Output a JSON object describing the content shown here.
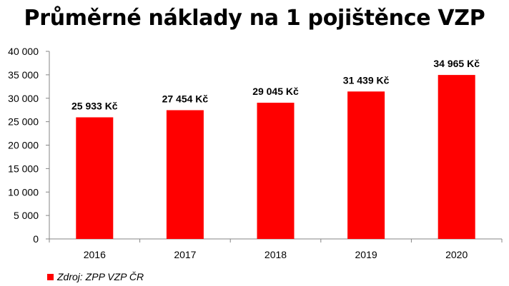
{
  "chart_data": {
    "type": "bar",
    "title": "Průměrné náklady na 1 pojištěnce VZP",
    "categories": [
      "2016",
      "2017",
      "2018",
      "2019",
      "2020"
    ],
    "values": [
      25933,
      27454,
      29045,
      31439,
      34965
    ],
    "data_labels": [
      "25 933 Kč",
      "27 454 Kč",
      "29 045 Kč",
      "31 439 Kč",
      "34 965 Kč"
    ],
    "yticks": [
      "0",
      "5 000",
      "10 000",
      "15 000",
      "20 000",
      "25 000",
      "30 000",
      "35 000",
      "40 000"
    ],
    "ylim": [
      0,
      40000
    ],
    "xlabel": "",
    "ylabel": "",
    "grid": false,
    "bar_color": "#FF0000",
    "legend": {
      "position": "bottom-left",
      "label": "Zdroj: ZPP VZP ČR"
    }
  }
}
